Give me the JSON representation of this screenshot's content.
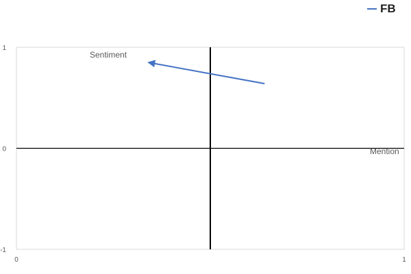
{
  "chart_data": {
    "type": "line",
    "legend_position": "top-right",
    "grid": true,
    "xlim": [
      0,
      1
    ],
    "ylim": [
      -1,
      1
    ],
    "xlabel": "Mention",
    "ylabel": "Sentiment",
    "x_ticks": [
      "0",
      "1"
    ],
    "y_ticks": [
      "-1",
      "0",
      "1"
    ],
    "series": [
      {
        "name": "FB",
        "color": "#4472c4",
        "end_marker": "arrow",
        "points": [
          {
            "x": 0.64,
            "y": 0.64
          },
          {
            "x": 0.34,
            "y": 0.85
          }
        ]
      }
    ]
  }
}
